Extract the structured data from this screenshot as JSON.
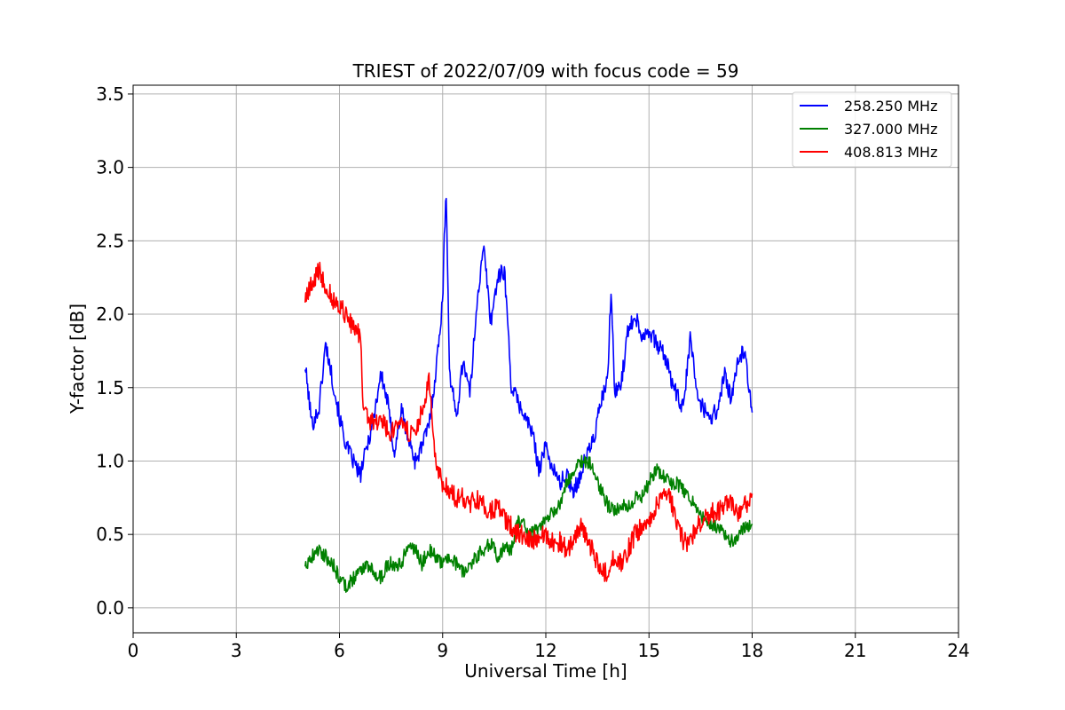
{
  "chart_data": {
    "type": "line",
    "title": "TRIEST of 2022/07/09 with focus code = 59",
    "xlabel": "Universal Time [h]",
    "ylabel": "Y-factor [dB]",
    "xlim": [
      0,
      24
    ],
    "ylim": [
      -0.17,
      3.56
    ],
    "xticks": [
      0,
      3,
      6,
      9,
      12,
      15,
      18,
      21,
      24
    ],
    "xtick_labels": [
      "0",
      "3",
      "6",
      "9",
      "12",
      "15",
      "18",
      "21",
      "24"
    ],
    "yticks": [
      0.0,
      0.5,
      1.0,
      1.5,
      2.0,
      2.5,
      3.0,
      3.5
    ],
    "ytick_labels": [
      "0.0",
      "0.5",
      "1.0",
      "1.5",
      "2.0",
      "2.5",
      "3.0",
      "3.5"
    ],
    "grid": true,
    "legend_position": "top-right",
    "series": [
      {
        "name": "258.250 MHz",
        "color": "#0000ff",
        "noise": 0.06,
        "x": [
          5.0,
          5.2,
          5.4,
          5.6,
          5.8,
          6.0,
          6.2,
          6.4,
          6.6,
          6.8,
          7.0,
          7.2,
          7.4,
          7.6,
          7.8,
          8.0,
          8.2,
          8.4,
          8.6,
          8.8,
          9.0,
          9.1,
          9.2,
          9.4,
          9.6,
          9.8,
          10.0,
          10.2,
          10.4,
          10.6,
          10.8,
          11.0,
          11.2,
          11.4,
          11.6,
          11.8,
          12.0,
          12.2,
          12.4,
          12.6,
          12.8,
          13.0,
          13.2,
          13.4,
          13.6,
          13.8,
          13.9,
          14.0,
          14.2,
          14.4,
          14.6,
          14.8,
          15.0,
          15.2,
          15.4,
          15.6,
          15.8,
          16.0,
          16.2,
          16.4,
          16.6,
          16.8,
          17.0,
          17.2,
          17.4,
          17.6,
          17.8,
          18.0
        ],
        "y": [
          1.65,
          1.25,
          1.35,
          1.8,
          1.55,
          1.3,
          1.1,
          1.0,
          0.9,
          1.1,
          1.3,
          1.6,
          1.4,
          1.05,
          1.35,
          1.15,
          1.0,
          1.1,
          1.25,
          1.6,
          2.1,
          2.9,
          1.6,
          1.3,
          1.7,
          1.45,
          2.1,
          2.45,
          1.95,
          2.25,
          2.3,
          1.5,
          1.4,
          1.3,
          1.2,
          0.95,
          1.1,
          0.95,
          0.85,
          0.9,
          0.8,
          0.9,
          1.05,
          1.15,
          1.4,
          1.55,
          2.2,
          1.45,
          1.55,
          1.9,
          2.0,
          1.85,
          1.9,
          1.8,
          1.75,
          1.6,
          1.45,
          1.35,
          1.85,
          1.45,
          1.35,
          1.3,
          1.35,
          1.6,
          1.4,
          1.7,
          1.75,
          1.3
        ]
      },
      {
        "name": "327.000 MHz",
        "color": "#008000",
        "noise": 0.05,
        "x": [
          5.0,
          5.2,
          5.4,
          5.6,
          5.8,
          6.0,
          6.2,
          6.4,
          6.6,
          6.8,
          7.0,
          7.2,
          7.4,
          7.6,
          7.8,
          8.0,
          8.2,
          8.4,
          8.6,
          8.8,
          9.0,
          9.2,
          9.4,
          9.6,
          9.8,
          10.0,
          10.2,
          10.4,
          10.6,
          10.8,
          11.0,
          11.2,
          11.4,
          11.6,
          11.8,
          12.0,
          12.2,
          12.4,
          12.6,
          12.8,
          13.0,
          13.2,
          13.4,
          13.6,
          13.8,
          14.0,
          14.2,
          14.4,
          14.6,
          14.8,
          15.0,
          15.2,
          15.4,
          15.6,
          15.8,
          16.0,
          16.2,
          16.4,
          16.6,
          16.8,
          17.0,
          17.2,
          17.4,
          17.6,
          17.8,
          18.0
        ],
        "y": [
          0.3,
          0.35,
          0.4,
          0.35,
          0.3,
          0.2,
          0.15,
          0.2,
          0.25,
          0.3,
          0.25,
          0.2,
          0.3,
          0.3,
          0.3,
          0.45,
          0.4,
          0.3,
          0.4,
          0.35,
          0.3,
          0.35,
          0.3,
          0.25,
          0.3,
          0.35,
          0.4,
          0.45,
          0.35,
          0.4,
          0.4,
          0.6,
          0.55,
          0.5,
          0.55,
          0.6,
          0.65,
          0.7,
          0.85,
          0.9,
          1.0,
          1.0,
          0.95,
          0.8,
          0.7,
          0.65,
          0.7,
          0.7,
          0.75,
          0.75,
          0.85,
          0.95,
          0.9,
          0.85,
          0.85,
          0.8,
          0.75,
          0.65,
          0.6,
          0.55,
          0.55,
          0.5,
          0.45,
          0.5,
          0.55,
          0.55
        ]
      },
      {
        "name": "408.813 MHz",
        "color": "#ff0000",
        "noise": 0.07,
        "x": [
          5.0,
          5.2,
          5.4,
          5.6,
          5.8,
          6.0,
          6.2,
          6.4,
          6.6,
          6.7,
          6.8,
          7.0,
          7.2,
          7.4,
          7.6,
          7.8,
          8.0,
          8.2,
          8.4,
          8.6,
          8.8,
          9.0,
          9.2,
          9.4,
          9.6,
          9.8,
          10.0,
          10.2,
          10.4,
          10.6,
          10.8,
          11.0,
          11.2,
          11.4,
          11.6,
          11.8,
          12.0,
          12.2,
          12.4,
          12.6,
          12.8,
          13.0,
          13.2,
          13.4,
          13.6,
          13.8,
          14.0,
          14.2,
          14.4,
          14.6,
          14.8,
          15.0,
          15.2,
          15.4,
          15.6,
          15.8,
          16.0,
          16.2,
          16.4,
          16.6,
          16.8,
          17.0,
          17.2,
          17.4,
          17.6,
          17.8,
          18.0
        ],
        "y": [
          2.1,
          2.2,
          2.3,
          2.2,
          2.1,
          2.05,
          2.0,
          1.9,
          1.85,
          1.35,
          1.3,
          1.25,
          1.3,
          1.2,
          1.2,
          1.3,
          1.2,
          1.15,
          1.35,
          1.55,
          0.95,
          0.85,
          0.8,
          0.75,
          0.75,
          0.7,
          0.75,
          0.7,
          0.65,
          0.7,
          0.6,
          0.55,
          0.5,
          0.5,
          0.45,
          0.5,
          0.5,
          0.45,
          0.45,
          0.4,
          0.45,
          0.55,
          0.5,
          0.35,
          0.25,
          0.25,
          0.35,
          0.3,
          0.4,
          0.5,
          0.55,
          0.6,
          0.7,
          0.75,
          0.75,
          0.6,
          0.45,
          0.45,
          0.55,
          0.6,
          0.65,
          0.65,
          0.7,
          0.7,
          0.65,
          0.7,
          0.75
        ]
      }
    ]
  }
}
